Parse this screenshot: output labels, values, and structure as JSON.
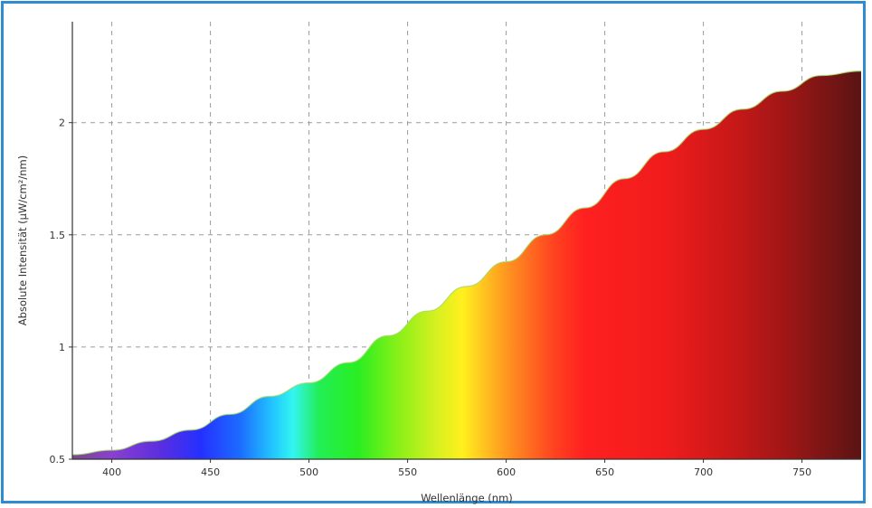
{
  "chart_data": {
    "type": "area",
    "title": "",
    "xlabel": "Wellenlänge (nm)",
    "ylabel": "Absolute Intensität (µW/cm²/nm)",
    "xlim": [
      380,
      780
    ],
    "ylim": [
      0.5,
      2.45
    ],
    "xticks": [
      400,
      450,
      500,
      550,
      600,
      650,
      700,
      750
    ],
    "yticks": [
      0.5,
      1,
      1.5,
      2
    ],
    "ytick_labels": [
      "0.5",
      "1",
      "1.5",
      "2"
    ],
    "grid": true,
    "fill": "visible-spectrum colored by wavelength",
    "x": [
      380,
      400,
      420,
      440,
      460,
      480,
      500,
      520,
      540,
      560,
      580,
      600,
      620,
      640,
      660,
      680,
      700,
      720,
      740,
      760,
      780
    ],
    "values": [
      0.52,
      0.54,
      0.58,
      0.63,
      0.7,
      0.78,
      0.84,
      0.93,
      1.05,
      1.16,
      1.27,
      1.38,
      1.5,
      1.62,
      1.75,
      1.87,
      1.97,
      2.06,
      2.14,
      2.21,
      2.23
    ]
  }
}
